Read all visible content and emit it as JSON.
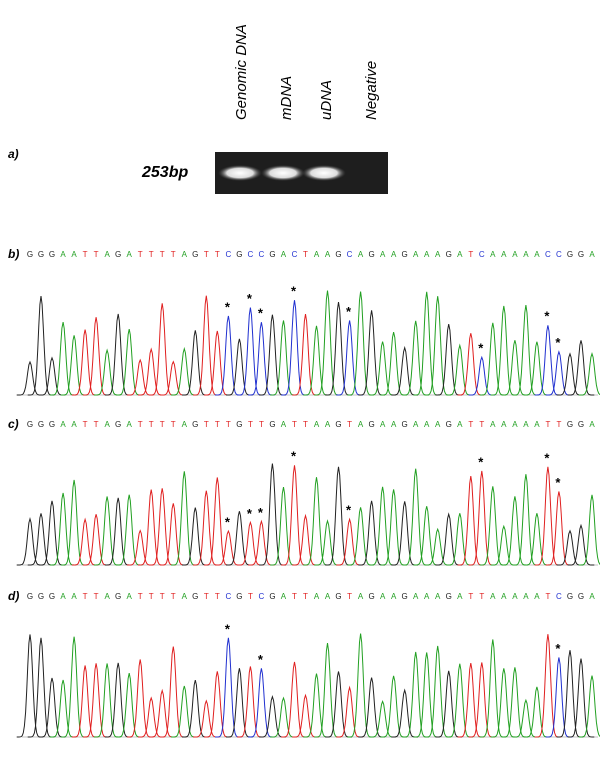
{
  "gel": {
    "panel_label": "a)",
    "lanes": [
      "Genomic DNA",
      "mDNA",
      "uDNA",
      "Negative"
    ],
    "band_size": "253bp"
  },
  "base_colors": {
    "G": "#222222",
    "A": "#22a022",
    "T": "#e02020",
    "C": "#2030d0"
  },
  "marker": "*",
  "panels": [
    {
      "label": "b)",
      "bases": [
        "G",
        "G",
        "G",
        "A",
        "A",
        "T",
        "T",
        "A",
        "G",
        "A",
        "T",
        "T",
        "T",
        "T",
        "A",
        "G",
        "T",
        "T",
        "C",
        "G",
        "C",
        "C",
        "G",
        "A",
        "C",
        "T",
        "A",
        "A",
        "G",
        "C",
        "A",
        "G",
        "A",
        "A",
        "G",
        "A",
        "A",
        "A",
        "G",
        "A",
        "T",
        "C",
        "A",
        "A",
        "A",
        "A",
        "A",
        "C",
        "C",
        "G",
        "G",
        "A"
      ],
      "marked_bases": [
        18,
        20,
        21,
        24,
        29,
        41,
        47,
        48
      ]
    },
    {
      "label": "c)",
      "bases": [
        "G",
        "G",
        "G",
        "A",
        "A",
        "T",
        "T",
        "A",
        "G",
        "A",
        "T",
        "T",
        "T",
        "T",
        "A",
        "G",
        "T",
        "T",
        "T",
        "G",
        "T",
        "T",
        "G",
        "A",
        "T",
        "T",
        "A",
        "A",
        "G",
        "T",
        "A",
        "G",
        "A",
        "A",
        "G",
        "A",
        "A",
        "A",
        "G",
        "A",
        "T",
        "T",
        "A",
        "A",
        "A",
        "A",
        "A",
        "T",
        "T",
        "G",
        "G",
        "A"
      ],
      "marked_bases": [
        18,
        20,
        21,
        24,
        29,
        41,
        47,
        48
      ]
    },
    {
      "label": "d)",
      "bases": [
        "G",
        "G",
        "G",
        "A",
        "A",
        "T",
        "T",
        "A",
        "G",
        "A",
        "T",
        "T",
        "T",
        "T",
        "A",
        "G",
        "T",
        "T",
        "C",
        "G",
        "T",
        "C",
        "G",
        "A",
        "T",
        "T",
        "A",
        "A",
        "G",
        "T",
        "A",
        "G",
        "A",
        "A",
        "G",
        "A",
        "A",
        "A",
        "G",
        "A",
        "T",
        "T",
        "A",
        "A",
        "A",
        "A",
        "A",
        "T",
        "C",
        "G",
        "G",
        "A"
      ],
      "marked_bases": [
        18,
        21,
        48
      ]
    }
  ]
}
